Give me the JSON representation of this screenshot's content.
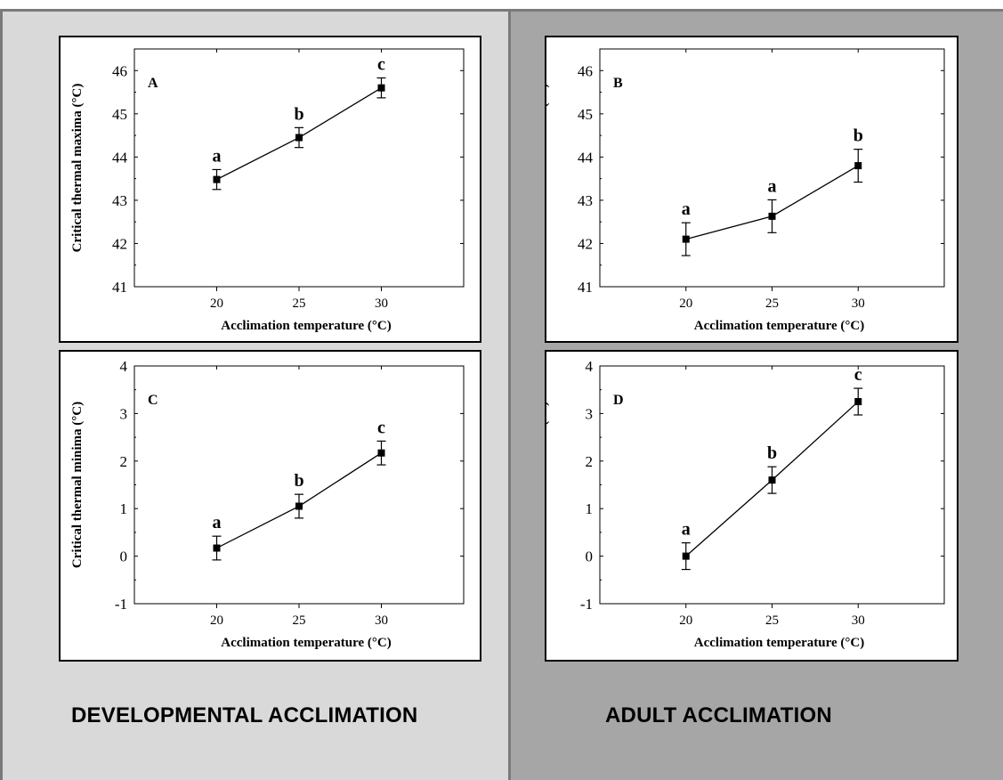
{
  "panels": {
    "left_title": "DEVELOPMENTAL ACCLIMATION",
    "right_title": "ADULT ACCLIMATION"
  },
  "colors": {
    "left_bg": "#d9d9d9",
    "right_bg": "#a6a6a6",
    "divider": "#7a7a7a",
    "plot_bg": "#ffffff",
    "ink": "#000000"
  },
  "chart_data": [
    {
      "id": "A",
      "type": "line",
      "panel_label": "A",
      "xlabel": "Acclimation temperature (°C)",
      "ylabel": "Critical thermal maxima (°C)",
      "xlim": [
        15,
        35
      ],
      "ylim": [
        41,
        46.5
      ],
      "xticks": [
        20,
        25,
        30
      ],
      "yticks": [
        41,
        42,
        43,
        44,
        45,
        46
      ],
      "x": [
        20,
        25,
        30
      ],
      "y": [
        43.48,
        44.45,
        45.6
      ],
      "err": [
        0.23,
        0.23,
        0.23
      ],
      "letters": [
        "a",
        "b",
        "c"
      ]
    },
    {
      "id": "B",
      "type": "line",
      "panel_label": "B",
      "xlabel": "Acclimation temperature (°C)",
      "ylabel": "Critical thermal maxima (°C)",
      "xlim": [
        15,
        35
      ],
      "ylim": [
        41,
        46.5
      ],
      "xticks": [
        20,
        25,
        30
      ],
      "yticks": [
        41,
        42,
        43,
        44,
        45,
        46
      ],
      "x": [
        20,
        25,
        30
      ],
      "y": [
        42.1,
        42.63,
        43.8
      ],
      "err": [
        0.38,
        0.38,
        0.38
      ],
      "letters": [
        "a",
        "a",
        "b"
      ]
    },
    {
      "id": "C",
      "type": "line",
      "panel_label": "C",
      "xlabel": "Acclimation temperature (°C)",
      "ylabel": "Critical thermal minima (°C)",
      "xlim": [
        15,
        35
      ],
      "ylim": [
        -1,
        4
      ],
      "xticks": [
        20,
        25,
        30
      ],
      "yticks": [
        -1,
        0,
        1,
        2,
        3,
        4
      ],
      "x": [
        20,
        25,
        30
      ],
      "y": [
        0.17,
        1.05,
        2.17
      ],
      "err": [
        0.25,
        0.25,
        0.25
      ],
      "letters": [
        "a",
        "b",
        "c"
      ]
    },
    {
      "id": "D",
      "type": "line",
      "panel_label": "D",
      "xlabel": "Acclimation temperature (°C)",
      "ylabel": "Critical thermal minima (°C)",
      "xlim": [
        15,
        35
      ],
      "ylim": [
        -1,
        4
      ],
      "xticks": [
        20,
        25,
        30
      ],
      "yticks": [
        -1,
        0,
        1,
        2,
        3,
        4
      ],
      "x": [
        20,
        25,
        30
      ],
      "y": [
        0.0,
        1.6,
        3.25
      ],
      "err": [
        0.28,
        0.28,
        0.28
      ],
      "letters": [
        "a",
        "b",
        "c"
      ]
    }
  ]
}
